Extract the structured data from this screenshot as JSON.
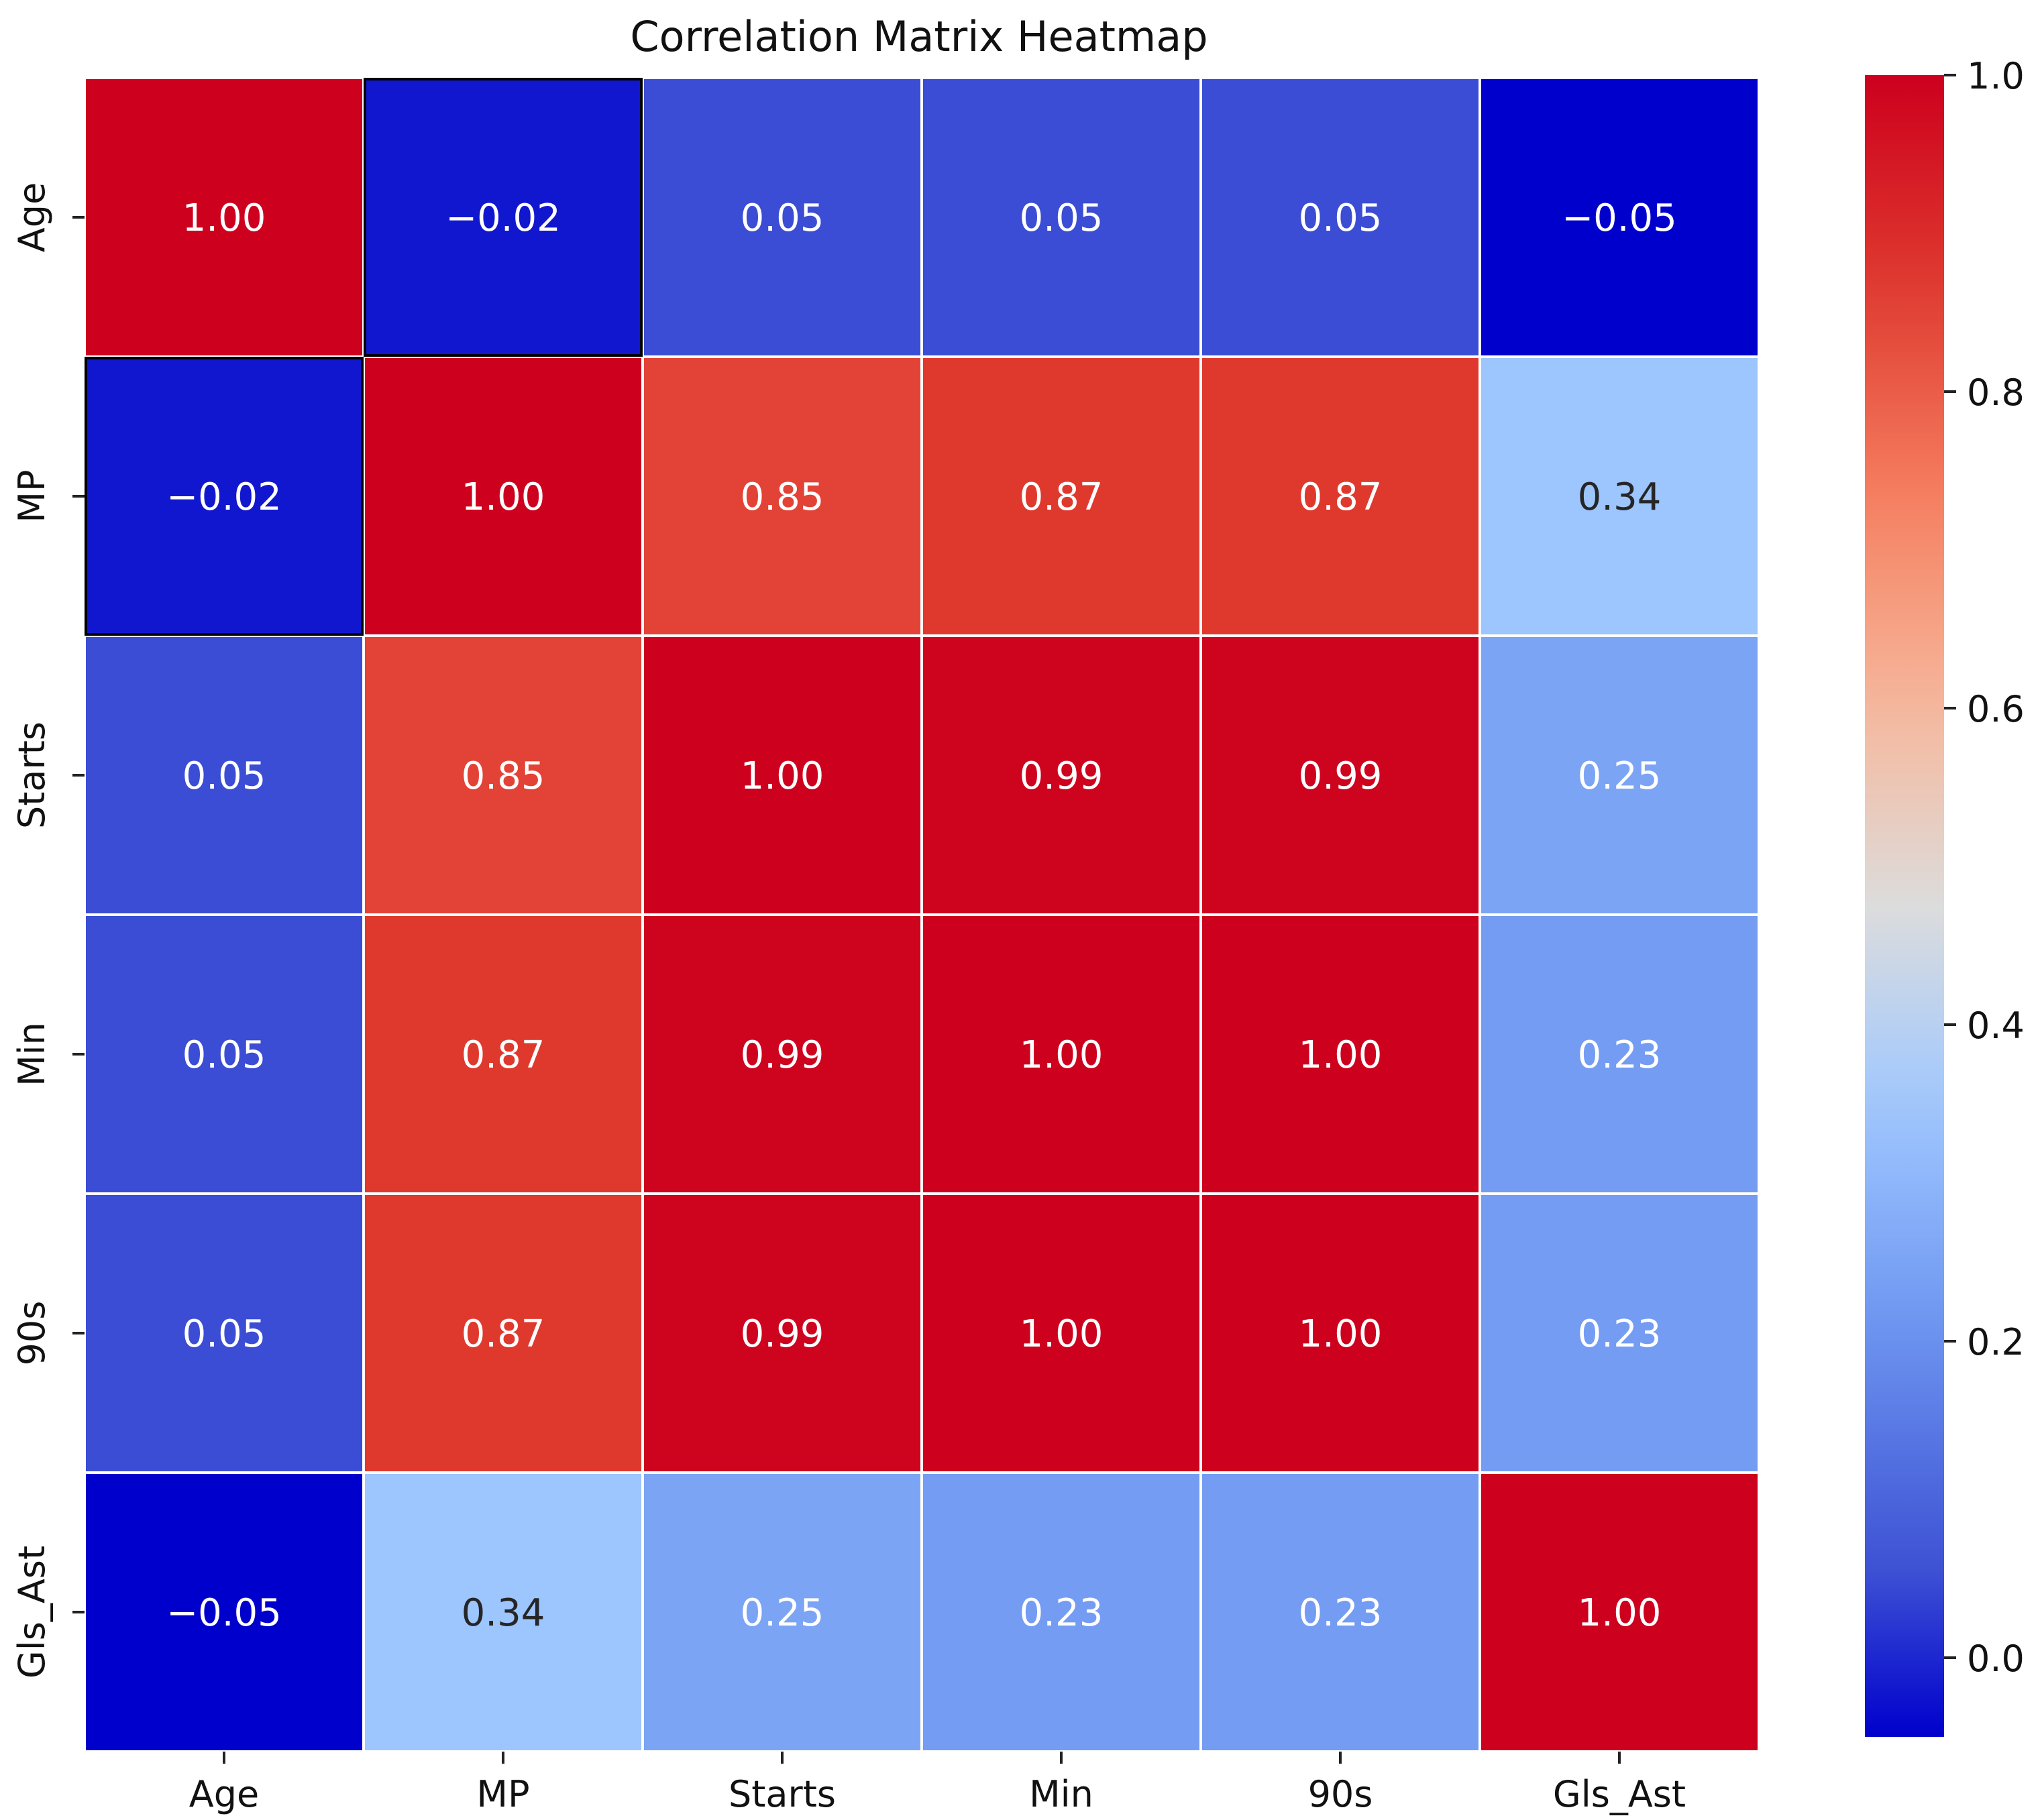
{
  "chart_data": {
    "type": "heatmap",
    "title": "Correlation Matrix Heatmap",
    "xlabel": "",
    "ylabel": "",
    "x_categories": [
      "Age",
      "MP",
      "Starts",
      "Min",
      "90s",
      "Gls_Ast"
    ],
    "y_categories": [
      "Age",
      "MP",
      "Starts",
      "Min",
      "90s",
      "Gls_Ast"
    ],
    "values": [
      [
        1.0,
        -0.02,
        0.05,
        0.05,
        0.05,
        -0.05
      ],
      [
        -0.02,
        1.0,
        0.85,
        0.87,
        0.87,
        0.34
      ],
      [
        0.05,
        0.85,
        1.0,
        0.99,
        0.99,
        0.25
      ],
      [
        0.05,
        0.87,
        0.99,
        1.0,
        1.0,
        0.23
      ],
      [
        0.05,
        0.87,
        0.99,
        1.0,
        1.0,
        0.23
      ],
      [
        -0.05,
        0.34,
        0.25,
        0.23,
        0.23,
        1.0
      ]
    ],
    "cell_labels": [
      [
        "1.00",
        "−0.02",
        "0.05",
        "0.05",
        "0.05",
        "−0.05"
      ],
      [
        "−0.02",
        "1.00",
        "0.85",
        "0.87",
        "0.87",
        "0.34"
      ],
      [
        "0.05",
        "0.85",
        "1.00",
        "0.99",
        "0.99",
        "0.25"
      ],
      [
        "0.05",
        "0.87",
        "0.99",
        "1.00",
        "1.00",
        "0.23"
      ],
      [
        "0.05",
        "0.87",
        "0.99",
        "1.00",
        "1.00",
        "0.23"
      ],
      [
        "−0.05",
        "0.34",
        "0.25",
        "0.23",
        "0.23",
        "1.00"
      ]
    ],
    "highlighted_cells": [
      [
        0,
        1
      ],
      [
        1,
        0
      ]
    ],
    "colormap": "coolwarm",
    "colorbar": {
      "range": [
        -0.05,
        1.0
      ],
      "ticks": [
        0.0,
        0.2,
        0.4,
        0.6,
        0.8,
        1.0
      ],
      "tick_labels": [
        "0.0",
        "0.2",
        "0.4",
        "0.6",
        "0.8",
        "1.0"
      ]
    },
    "colors": {
      "grid_line": "#ffffff",
      "highlight_border": "#000000",
      "text_light": "#ffffff",
      "text_dark": "#262626"
    }
  }
}
